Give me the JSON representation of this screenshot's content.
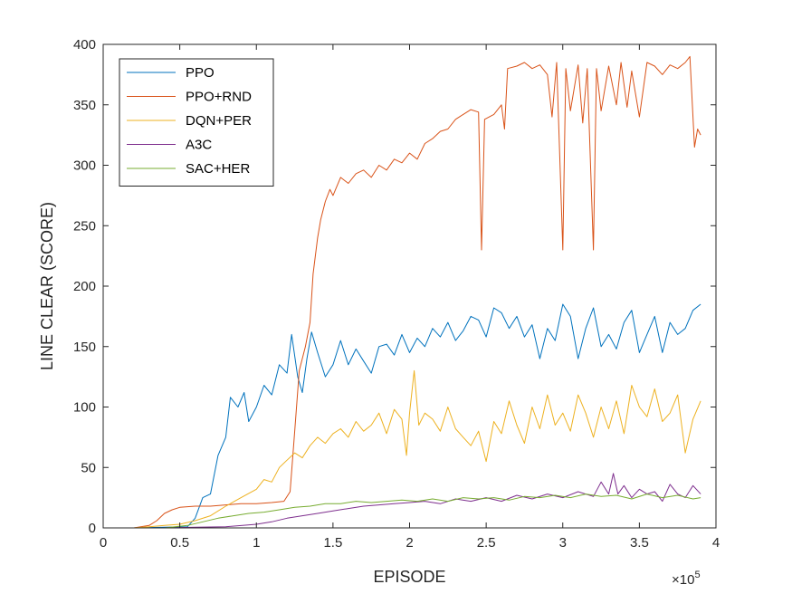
{
  "chart_data": {
    "type": "line",
    "title": "",
    "xlabel": "EPISODE",
    "ylabel": "LINE CLEAR (SCORE)",
    "xlim": [
      0,
      400000
    ],
    "ylim": [
      0,
      400
    ],
    "x_ticks": [
      0,
      50000,
      100000,
      150000,
      200000,
      250000,
      300000,
      350000,
      400000
    ],
    "x_tick_labels": [
      "0",
      "0.5",
      "1",
      "1.5",
      "2",
      "2.5",
      "3",
      "3.5",
      "4"
    ],
    "y_ticks": [
      0,
      50,
      100,
      150,
      200,
      250,
      300,
      350,
      400
    ],
    "y_tick_labels": [
      "0",
      "50",
      "100",
      "150",
      "200",
      "250",
      "300",
      "350",
      "400"
    ],
    "x_exponent": {
      "base": "×10",
      "power": "5"
    },
    "grid": false,
    "legend_position": "top-left",
    "series": [
      {
        "name": "PPO",
        "color": "#0072BD",
        "points": [
          [
            0,
            0
          ],
          [
            20000,
            0
          ],
          [
            40000,
            0.5
          ],
          [
            55000,
            1
          ],
          [
            60000,
            8
          ],
          [
            65000,
            25
          ],
          [
            70000,
            28
          ],
          [
            75000,
            60
          ],
          [
            80000,
            75
          ],
          [
            83000,
            108
          ],
          [
            88000,
            100
          ],
          [
            92000,
            112
          ],
          [
            95000,
            88
          ],
          [
            100000,
            100
          ],
          [
            105000,
            118
          ],
          [
            110000,
            110
          ],
          [
            115000,
            135
          ],
          [
            120000,
            128
          ],
          [
            123000,
            160
          ],
          [
            127000,
            125
          ],
          [
            130000,
            112
          ],
          [
            133000,
            140
          ],
          [
            136000,
            162
          ],
          [
            140000,
            145
          ],
          [
            145000,
            125
          ],
          [
            150000,
            135
          ],
          [
            155000,
            155
          ],
          [
            160000,
            135
          ],
          [
            165000,
            148
          ],
          [
            170000,
            138
          ],
          [
            175000,
            128
          ],
          [
            180000,
            150
          ],
          [
            185000,
            152
          ],
          [
            190000,
            143
          ],
          [
            195000,
            160
          ],
          [
            200000,
            145
          ],
          [
            205000,
            157
          ],
          [
            210000,
            150
          ],
          [
            215000,
            165
          ],
          [
            220000,
            158
          ],
          [
            225000,
            170
          ],
          [
            230000,
            155
          ],
          [
            235000,
            163
          ],
          [
            240000,
            175
          ],
          [
            245000,
            172
          ],
          [
            250000,
            158
          ],
          [
            255000,
            182
          ],
          [
            260000,
            178
          ],
          [
            265000,
            165
          ],
          [
            270000,
            175
          ],
          [
            275000,
            158
          ],
          [
            280000,
            168
          ],
          [
            285000,
            140
          ],
          [
            290000,
            165
          ],
          [
            295000,
            155
          ],
          [
            300000,
            185
          ],
          [
            305000,
            175
          ],
          [
            310000,
            140
          ],
          [
            315000,
            165
          ],
          [
            320000,
            182
          ],
          [
            325000,
            150
          ],
          [
            330000,
            160
          ],
          [
            335000,
            148
          ],
          [
            340000,
            170
          ],
          [
            345000,
            180
          ],
          [
            350000,
            145
          ],
          [
            355000,
            160
          ],
          [
            360000,
            175
          ],
          [
            365000,
            145
          ],
          [
            370000,
            170
          ],
          [
            375000,
            160
          ],
          [
            380000,
            165
          ],
          [
            385000,
            180
          ],
          [
            390000,
            185
          ]
        ]
      },
      {
        "name": "PPO+RND",
        "color": "#D95319",
        "points": [
          [
            0,
            0
          ],
          [
            20000,
            0
          ],
          [
            30000,
            2
          ],
          [
            35000,
            6
          ],
          [
            40000,
            12
          ],
          [
            45000,
            15
          ],
          [
            50000,
            17
          ],
          [
            60000,
            18
          ],
          [
            70000,
            18
          ],
          [
            80000,
            19
          ],
          [
            90000,
            20
          ],
          [
            100000,
            20
          ],
          [
            110000,
            21
          ],
          [
            118000,
            22
          ],
          [
            122000,
            30
          ],
          [
            125000,
            80
          ],
          [
            128000,
            130
          ],
          [
            132000,
            150
          ],
          [
            135000,
            170
          ],
          [
            137000,
            210
          ],
          [
            140000,
            240
          ],
          [
            142000,
            255
          ],
          [
            145000,
            270
          ],
          [
            148000,
            280
          ],
          [
            150000,
            275
          ],
          [
            155000,
            290
          ],
          [
            160000,
            285
          ],
          [
            165000,
            293
          ],
          [
            170000,
            296
          ],
          [
            175000,
            290
          ],
          [
            180000,
            300
          ],
          [
            185000,
            296
          ],
          [
            190000,
            305
          ],
          [
            195000,
            302
          ],
          [
            200000,
            310
          ],
          [
            205000,
            305
          ],
          [
            210000,
            318
          ],
          [
            215000,
            322
          ],
          [
            220000,
            328
          ],
          [
            225000,
            330
          ],
          [
            230000,
            338
          ],
          [
            235000,
            342
          ],
          [
            240000,
            346
          ],
          [
            245000,
            344
          ],
          [
            247000,
            230
          ],
          [
            249000,
            338
          ],
          [
            255000,
            342
          ],
          [
            260000,
            350
          ],
          [
            262000,
            330
          ],
          [
            264000,
            380
          ],
          [
            270000,
            382
          ],
          [
            275000,
            385
          ],
          [
            280000,
            380
          ],
          [
            285000,
            383
          ],
          [
            290000,
            375
          ],
          [
            293000,
            340
          ],
          [
            296000,
            385
          ],
          [
            300000,
            230
          ],
          [
            302000,
            380
          ],
          [
            305000,
            345
          ],
          [
            310000,
            383
          ],
          [
            313000,
            335
          ],
          [
            316000,
            380
          ],
          [
            320000,
            230
          ],
          [
            322000,
            380
          ],
          [
            325000,
            345
          ],
          [
            330000,
            382
          ],
          [
            335000,
            350
          ],
          [
            338000,
            385
          ],
          [
            342000,
            348
          ],
          [
            345000,
            378
          ],
          [
            350000,
            340
          ],
          [
            355000,
            385
          ],
          [
            360000,
            382
          ],
          [
            365000,
            375
          ],
          [
            370000,
            383
          ],
          [
            375000,
            380
          ],
          [
            380000,
            385
          ],
          [
            383000,
            390
          ],
          [
            386000,
            315
          ],
          [
            388000,
            330
          ],
          [
            390000,
            325
          ]
        ]
      },
      {
        "name": "DQN+PER",
        "color": "#EDB120",
        "points": [
          [
            0,
            0
          ],
          [
            20000,
            0
          ],
          [
            30000,
            1
          ],
          [
            40000,
            2
          ],
          [
            50000,
            3
          ],
          [
            60000,
            6
          ],
          [
            70000,
            10
          ],
          [
            80000,
            18
          ],
          [
            90000,
            25
          ],
          [
            100000,
            32
          ],
          [
            105000,
            40
          ],
          [
            110000,
            38
          ],
          [
            115000,
            50
          ],
          [
            120000,
            56
          ],
          [
            125000,
            62
          ],
          [
            130000,
            58
          ],
          [
            135000,
            68
          ],
          [
            140000,
            75
          ],
          [
            145000,
            70
          ],
          [
            150000,
            78
          ],
          [
            155000,
            82
          ],
          [
            160000,
            75
          ],
          [
            165000,
            88
          ],
          [
            170000,
            80
          ],
          [
            175000,
            85
          ],
          [
            180000,
            95
          ],
          [
            185000,
            78
          ],
          [
            190000,
            98
          ],
          [
            195000,
            90
          ],
          [
            198000,
            60
          ],
          [
            200000,
            95
          ],
          [
            203000,
            130
          ],
          [
            206000,
            85
          ],
          [
            210000,
            95
          ],
          [
            215000,
            90
          ],
          [
            220000,
            80
          ],
          [
            225000,
            100
          ],
          [
            230000,
            82
          ],
          [
            235000,
            75
          ],
          [
            240000,
            68
          ],
          [
            245000,
            80
          ],
          [
            250000,
            55
          ],
          [
            255000,
            88
          ],
          [
            260000,
            78
          ],
          [
            265000,
            105
          ],
          [
            270000,
            85
          ],
          [
            275000,
            70
          ],
          [
            280000,
            100
          ],
          [
            285000,
            82
          ],
          [
            290000,
            110
          ],
          [
            295000,
            85
          ],
          [
            300000,
            95
          ],
          [
            305000,
            80
          ],
          [
            310000,
            110
          ],
          [
            315000,
            95
          ],
          [
            320000,
            75
          ],
          [
            325000,
            100
          ],
          [
            330000,
            82
          ],
          [
            335000,
            105
          ],
          [
            340000,
            78
          ],
          [
            345000,
            118
          ],
          [
            350000,
            100
          ],
          [
            355000,
            92
          ],
          [
            360000,
            115
          ],
          [
            365000,
            88
          ],
          [
            370000,
            95
          ],
          [
            375000,
            110
          ],
          [
            380000,
            62
          ],
          [
            385000,
            90
          ],
          [
            390000,
            105
          ]
        ]
      },
      {
        "name": "A3C",
        "color": "#7E2F8E",
        "points": [
          [
            0,
            0
          ],
          [
            40000,
            0
          ],
          [
            60000,
            0.5
          ],
          [
            80000,
            1
          ],
          [
            100000,
            3
          ],
          [
            110000,
            5
          ],
          [
            120000,
            8
          ],
          [
            130000,
            10
          ],
          [
            140000,
            12
          ],
          [
            150000,
            14
          ],
          [
            160000,
            16
          ],
          [
            170000,
            18
          ],
          [
            180000,
            19
          ],
          [
            190000,
            20
          ],
          [
            200000,
            21
          ],
          [
            210000,
            22
          ],
          [
            220000,
            20
          ],
          [
            230000,
            24
          ],
          [
            240000,
            22
          ],
          [
            250000,
            25
          ],
          [
            260000,
            22
          ],
          [
            270000,
            27
          ],
          [
            280000,
            24
          ],
          [
            290000,
            28
          ],
          [
            300000,
            25
          ],
          [
            310000,
            30
          ],
          [
            320000,
            26
          ],
          [
            325000,
            38
          ],
          [
            330000,
            28
          ],
          [
            333000,
            45
          ],
          [
            336000,
            28
          ],
          [
            340000,
            35
          ],
          [
            345000,
            25
          ],
          [
            350000,
            32
          ],
          [
            355000,
            28
          ],
          [
            360000,
            30
          ],
          [
            365000,
            22
          ],
          [
            370000,
            36
          ],
          [
            375000,
            28
          ],
          [
            380000,
            25
          ],
          [
            385000,
            35
          ],
          [
            390000,
            28
          ]
        ]
      },
      {
        "name": "SAC+HER",
        "color": "#77AC30",
        "points": [
          [
            0,
            0
          ],
          [
            40000,
            0
          ],
          [
            55000,
            2
          ],
          [
            65000,
            5
          ],
          [
            75000,
            8
          ],
          [
            85000,
            10
          ],
          [
            95000,
            12
          ],
          [
            105000,
            13
          ],
          [
            115000,
            15
          ],
          [
            125000,
            17
          ],
          [
            135000,
            18
          ],
          [
            145000,
            20
          ],
          [
            155000,
            20
          ],
          [
            165000,
            22
          ],
          [
            175000,
            21
          ],
          [
            185000,
            22
          ],
          [
            195000,
            23
          ],
          [
            205000,
            22
          ],
          [
            215000,
            24
          ],
          [
            225000,
            22
          ],
          [
            235000,
            25
          ],
          [
            245000,
            24
          ],
          [
            255000,
            25
          ],
          [
            265000,
            23
          ],
          [
            275000,
            26
          ],
          [
            285000,
            25
          ],
          [
            295000,
            27
          ],
          [
            305000,
            25
          ],
          [
            315000,
            28
          ],
          [
            325000,
            26
          ],
          [
            335000,
            27
          ],
          [
            345000,
            24
          ],
          [
            355000,
            28
          ],
          [
            365000,
            25
          ],
          [
            375000,
            27
          ],
          [
            385000,
            24
          ],
          [
            390000,
            25
          ]
        ]
      }
    ]
  }
}
